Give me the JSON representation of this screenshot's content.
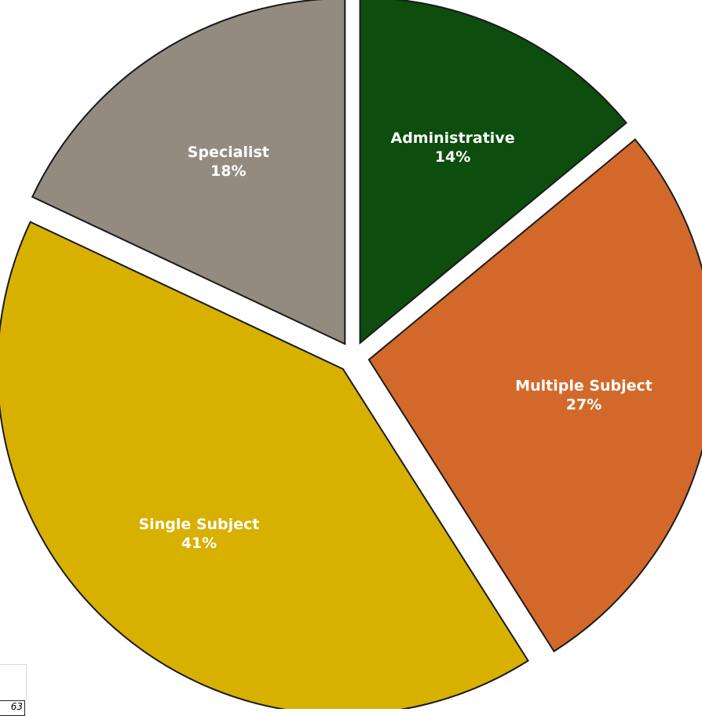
{
  "chart_data": {
    "type": "pie",
    "title": "",
    "slices": [
      {
        "label": "Administrative",
        "value": 14,
        "display": "14%",
        "color": "#0d4d0d"
      },
      {
        "label": "Multiple Subject",
        "value": 27,
        "display": "27%",
        "color": "#d2692a"
      },
      {
        "label": "Single Subject",
        "value": 41,
        "display": "41%",
        "color": "#d8b000"
      },
      {
        "label": "Specialist",
        "value": 18,
        "display": "18%",
        "color": "#938b7f"
      }
    ],
    "exploded": true,
    "legend": "none",
    "labels_inside": true
  },
  "page_number": "63"
}
